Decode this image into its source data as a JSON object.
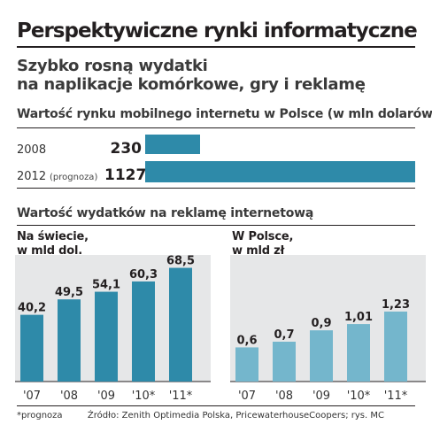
{
  "header": {
    "title": "Perspektywiczne rynki informatyczne",
    "subtitle_line1": "Szybko rosną wydatki",
    "subtitle_line2": "na naplikacje komórkowe, gry i reklamę"
  },
  "colors": {
    "world_bar": "#2e8aa9",
    "poland_bar": "#74b6cc",
    "rule": "#231f20",
    "panel_bg": "#e6e7e8"
  },
  "chart_data": [
    {
      "type": "bar",
      "orientation": "horizontal",
      "title": "Wartość rynku mobilnego internetu w Polsce (w mln dolarów)",
      "categories": [
        "2008",
        "2012"
      ],
      "category_notes": [
        "",
        "(prognoza)"
      ],
      "values": [
        230,
        1127
      ],
      "value_labels": [
        "230",
        "1127"
      ],
      "xlim": [
        0,
        1127
      ],
      "grid": false
    },
    {
      "type": "bar",
      "title": "Wartość wydatków na reklamę internetową",
      "panel_label_line1": "Na świecie,",
      "panel_label_line2": "w mld dol.",
      "categories": [
        "'07",
        "'08",
        "'09",
        "'10*",
        "'11*"
      ],
      "values": [
        40.2,
        49.5,
        54.1,
        60.3,
        68.5
      ],
      "value_labels": [
        "40,2",
        "49,5",
        "54,1",
        "60,3",
        "68,5"
      ],
      "ylim": [
        0,
        72
      ],
      "grid": false
    },
    {
      "type": "bar",
      "panel_label_line1": "W Polsce,",
      "panel_label_line2": "w mld zł",
      "categories": [
        "'07",
        "'08",
        "'09",
        "'10*",
        "'11*"
      ],
      "values": [
        0.6,
        0.7,
        0.9,
        1.01,
        1.23
      ],
      "value_labels": [
        "0,6",
        "0,7",
        "0,9",
        "1,01",
        "1,23"
      ],
      "ylim": [
        0,
        2.1
      ],
      "grid": false
    }
  ],
  "footer": {
    "note": "*prognoza",
    "source": "Źródło: Zenith Optimedia Polska, PricewaterhouseCoopers;  rys. MC"
  }
}
